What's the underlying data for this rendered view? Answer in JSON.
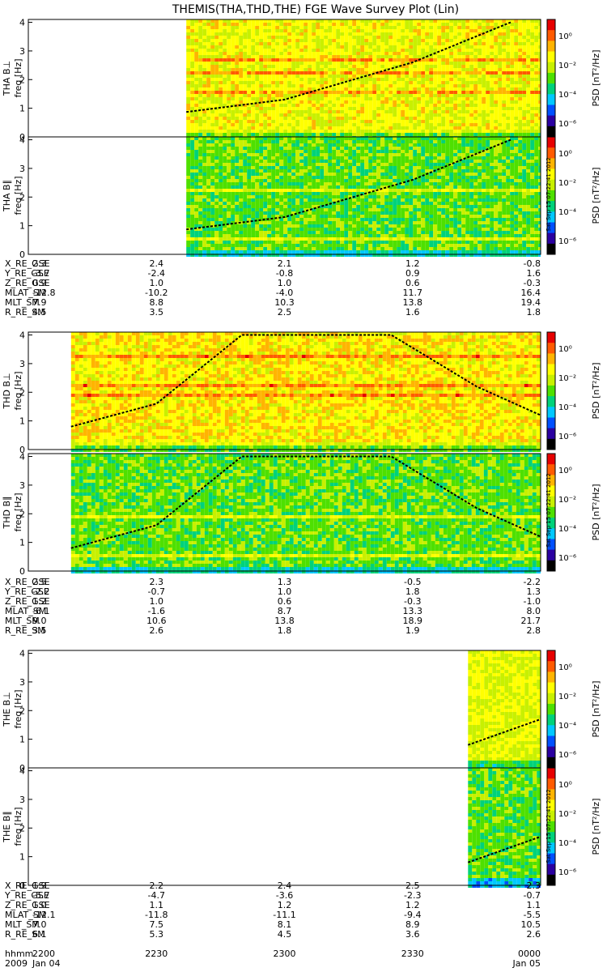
{
  "title": "THEMIS(THA,THD,THE) FGE Wave Survey Plot (Lin)",
  "y_axis_label": "freq [Hz]",
  "y_tick_labels": [
    "0",
    "1",
    "2",
    "3",
    "4"
  ],
  "colorbar": {
    "label": "PSD [nT²/Hz]",
    "tick_labels": [
      "10⁰",
      "10⁻²",
      "10⁻⁴",
      "10⁻⁶"
    ],
    "scale": "log",
    "range": [
      1e-07,
      10
    ],
    "colors": [
      "#000000",
      "#2a00a0",
      "#0050ff",
      "#00c8ff",
      "#00d27a",
      "#4ee000",
      "#c8f000",
      "#ffff00",
      "#ffb400",
      "#ff5a00",
      "#e60000"
    ]
  },
  "timestamp": "Sat Sep 15 07:22:41 2012",
  "probes": [
    {
      "probe": "THA",
      "panels": [
        "THA B⊥",
        "THA B∥"
      ],
      "ephemeris": [
        {
          "label": "X_RE_GSE",
          "values": [
            "2.3",
            "2.4",
            "2.1",
            "1.2",
            "-0.8"
          ]
        },
        {
          "label": "Y_RE_GSE",
          "values": [
            "-3.7",
            "-2.4",
            "-0.8",
            "0.9",
            "1.6"
          ]
        },
        {
          "label": "Z_RE_GSE",
          "values": [
            "0.9",
            "1.0",
            "1.0",
            "0.6",
            "-0.3"
          ]
        },
        {
          "label": "MLAT_SM",
          "values": [
            "-12.8",
            "-10.2",
            "-4.0",
            "11.7",
            "16.4"
          ]
        },
        {
          "label": "MLT_SM",
          "values": [
            "7.9",
            "8.8",
            "10.3",
            "13.8",
            "19.4"
          ]
        },
        {
          "label": "R_RE_SM",
          "values": [
            "4.5",
            "3.5",
            "2.5",
            "1.6",
            "1.8"
          ]
        }
      ]
    },
    {
      "probe": "THD",
      "panels": [
        "THD B⊥",
        "THD B∥"
      ],
      "ephemeris": [
        {
          "label": "X_RE_GSE",
          "values": [
            "2.5",
            "2.3",
            "1.3",
            "-0.5",
            "-2.2"
          ]
        },
        {
          "label": "Y_RE_GSE",
          "values": [
            "-2.2",
            "-0.7",
            "1.0",
            "1.8",
            "1.3"
          ]
        },
        {
          "label": "Z_RE_GSE",
          "values": [
            "1.2",
            "1.0",
            "0.6",
            "-0.3",
            "-1.0"
          ]
        },
        {
          "label": "MLAT_SM",
          "values": [
            "-6.1",
            "-1.6",
            "8.7",
            "13.3",
            "8.0"
          ]
        },
        {
          "label": "MLT_SM",
          "values": [
            "9.0",
            "10.6",
            "13.8",
            "18.9",
            "21.7"
          ]
        },
        {
          "label": "R_RE_SM",
          "values": [
            "3.5",
            "2.6",
            "1.8",
            "1.9",
            "2.8"
          ]
        }
      ]
    },
    {
      "probe": "THE",
      "panels": [
        "THE B⊥",
        "THE B∥"
      ],
      "ephemeris": [
        {
          "label": "X_RE_GSE",
          "values": [
            "1.9",
            "2.2",
            "2.4",
            "2.5",
            "2.3"
          ]
        },
        {
          "label": "Y_RE_GSE",
          "values": [
            "-5.7",
            "-4.7",
            "-3.6",
            "-2.3",
            "-0.7"
          ]
        },
        {
          "label": "Z_RE_GSE",
          "values": [
            "1.0",
            "1.1",
            "1.2",
            "1.2",
            "1.1"
          ]
        },
        {
          "label": "MLAT_SM",
          "values": [
            "-12.1",
            "-11.8",
            "-11.1",
            "-9.4",
            "-5.5"
          ]
        },
        {
          "label": "MLT_SM",
          "values": [
            "7.0",
            "7.5",
            "8.1",
            "8.9",
            "10.5"
          ]
        },
        {
          "label": "R_RE_SM",
          "values": [
            "6.1",
            "5.3",
            "4.5",
            "3.6",
            "2.6"
          ]
        }
      ]
    }
  ],
  "time_axis": {
    "label": "hhmm",
    "tick_labels": [
      "2200",
      "2230",
      "2300",
      "2330",
      "0000"
    ],
    "date_left_year": "2009",
    "date_left": "Jan 04",
    "date_right": "Jan 05"
  },
  "chart_data": {
    "type": "heatmap",
    "title": "THEMIS(THA,THD,THE) FGE Wave Survey Plot (Lin)",
    "x_quantity": "time (hhmm)",
    "x_range": [
      "2009-01-04 22:00",
      "2009-01-05 00:00"
    ],
    "x_ticks": [
      "2200",
      "2230",
      "2300",
      "2330",
      "0000"
    ],
    "ylabel": "freq [Hz]",
    "ylim": [
      0,
      4.1
    ],
    "yticks": [
      0,
      1,
      2,
      3,
      4
    ],
    "color_scale": "log",
    "color_label": "PSD [nT²/Hz]",
    "color_range": [
      1e-07,
      10
    ],
    "panels": [
      {
        "name": "THA B⊥",
        "data_start": "22:37",
        "data_end": "00:00",
        "mean_log10_psd": -1.6,
        "low_freq_log10_psd": -3.0,
        "bright_lines_hz": [
          0.3,
          1.6,
          2.3,
          2.7
        ],
        "gyro_curve_hz": [
          [
            "22:37",
            0.87
          ],
          [
            "23:00",
            1.3
          ],
          [
            "23:30",
            2.6
          ],
          [
            "23:53",
            4.0
          ]
        ]
      },
      {
        "name": "THA B∥",
        "data_start": "22:37",
        "data_end": "00:00",
        "mean_log10_psd": -3.0,
        "low_freq_log10_psd": -4.2,
        "bright_lines_hz": [
          0.3,
          0.6,
          2.3
        ],
        "gyro_curve_hz": [
          [
            "22:37",
            0.87
          ],
          [
            "23:00",
            1.3
          ],
          [
            "23:30",
            2.6
          ],
          [
            "23:53",
            4.0
          ]
        ]
      },
      {
        "name": "THD B⊥",
        "data_start": "22:10",
        "data_end": "00:00",
        "mean_log10_psd": -1.3,
        "low_freq_log10_psd": -3.0,
        "bright_lines_hz": [
          0.3,
          2.0,
          2.3,
          3.3
        ],
        "gyro_curve_hz": [
          [
            "22:10",
            0.8
          ],
          [
            "22:30",
            1.6
          ],
          [
            "22:50",
            4.0
          ],
          [
            "23:25",
            4.0
          ],
          [
            "23:45",
            2.2
          ],
          [
            "00:00",
            1.2
          ]
        ]
      },
      {
        "name": "THD B∥",
        "data_start": "22:10",
        "data_end": "00:00",
        "mean_log10_psd": -3.0,
        "low_freq_log10_psd": -4.2,
        "bright_lines_hz": [
          0.3,
          0.6,
          2.0
        ],
        "gyro_curve_hz": [
          [
            "22:10",
            0.8
          ],
          [
            "22:30",
            1.6
          ],
          [
            "22:50",
            4.0
          ],
          [
            "23:25",
            4.0
          ],
          [
            "23:45",
            2.2
          ],
          [
            "00:00",
            1.2
          ]
        ]
      },
      {
        "name": "THE B⊥",
        "data_start": "23:43",
        "data_end": "00:00",
        "mean_log10_psd": -1.8,
        "low_freq_log10_psd": -3.5,
        "bright_lines_hz": [],
        "gyro_curve_hz": [
          [
            "23:43",
            0.8
          ],
          [
            "00:00",
            1.7
          ]
        ]
      },
      {
        "name": "THE B∥",
        "data_start": "23:43",
        "data_end": "00:00",
        "mean_log10_psd": -3.0,
        "low_freq_log10_psd": -4.5,
        "bright_lines_hz": [],
        "gyro_curve_hz": [
          [
            "23:43",
            0.8
          ],
          [
            "00:00",
            1.7
          ]
        ]
      }
    ]
  }
}
